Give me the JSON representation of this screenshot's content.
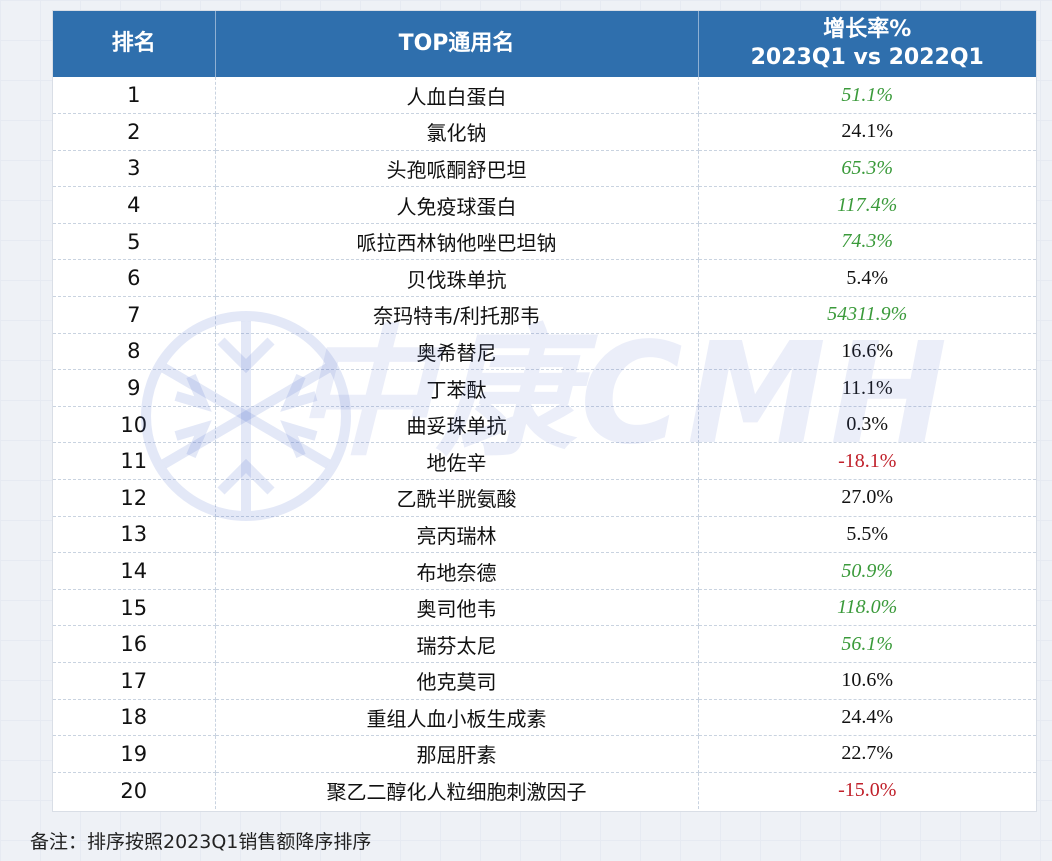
{
  "table": {
    "headers": {
      "rank": "排名",
      "name": "TOP通用名",
      "growth_line1": "增长率%",
      "growth_line2": "2023Q1 vs 2022Q1"
    },
    "rows": [
      {
        "rank": "1",
        "name": "人血白蛋白",
        "growth": "51.1%",
        "style": "green"
      },
      {
        "rank": "2",
        "name": "氯化钠",
        "growth": "24.1%",
        "style": "black"
      },
      {
        "rank": "3",
        "name": "头孢哌酮舒巴坦",
        "growth": "65.3%",
        "style": "green"
      },
      {
        "rank": "4",
        "name": "人免疫球蛋白",
        "growth": "117.4%",
        "style": "green"
      },
      {
        "rank": "5",
        "name": "哌拉西林钠他唑巴坦钠",
        "growth": "74.3%",
        "style": "green"
      },
      {
        "rank": "6",
        "name": "贝伐珠单抗",
        "growth": "5.4%",
        "style": "black"
      },
      {
        "rank": "7",
        "name": "奈玛特韦/利托那韦",
        "growth": "54311.9%",
        "style": "green"
      },
      {
        "rank": "8",
        "name": "奥希替尼",
        "growth": "16.6%",
        "style": "black"
      },
      {
        "rank": "9",
        "name": "丁苯酞",
        "growth": "11.1%",
        "style": "black"
      },
      {
        "rank": "10",
        "name": "曲妥珠单抗",
        "growth": "0.3%",
        "style": "black"
      },
      {
        "rank": "11",
        "name": "地佐辛",
        "growth": "-18.1%",
        "style": "red"
      },
      {
        "rank": "12",
        "name": "乙酰半胱氨酸",
        "growth": "27.0%",
        "style": "black"
      },
      {
        "rank": "13",
        "name": "亮丙瑞林",
        "growth": "5.5%",
        "style": "black"
      },
      {
        "rank": "14",
        "name": "布地奈德",
        "growth": "50.9%",
        "style": "green"
      },
      {
        "rank": "15",
        "name": "奥司他韦",
        "growth": "118.0%",
        "style": "green"
      },
      {
        "rank": "16",
        "name": "瑞芬太尼",
        "growth": "56.1%",
        "style": "green"
      },
      {
        "rank": "17",
        "name": "他克莫司",
        "growth": "10.6%",
        "style": "black"
      },
      {
        "rank": "18",
        "name": "重组人血小板生成素",
        "growth": "24.4%",
        "style": "black"
      },
      {
        "rank": "19",
        "name": "那屈肝素",
        "growth": "22.7%",
        "style": "black"
      },
      {
        "rank": "20",
        "name": "聚乙二醇化人粒细胞刺激因子",
        "growth": "-15.0%",
        "style": "red"
      }
    ]
  },
  "note": "备注：排序按照2023Q1销售额降序排序",
  "watermark": {
    "text": "中康CMH",
    "icon": "snowflake-logo-icon"
  },
  "colors": {
    "header_bg": "#2f6fad",
    "positive_green": "#3a9a3a",
    "negative_red": "#c0202a"
  }
}
